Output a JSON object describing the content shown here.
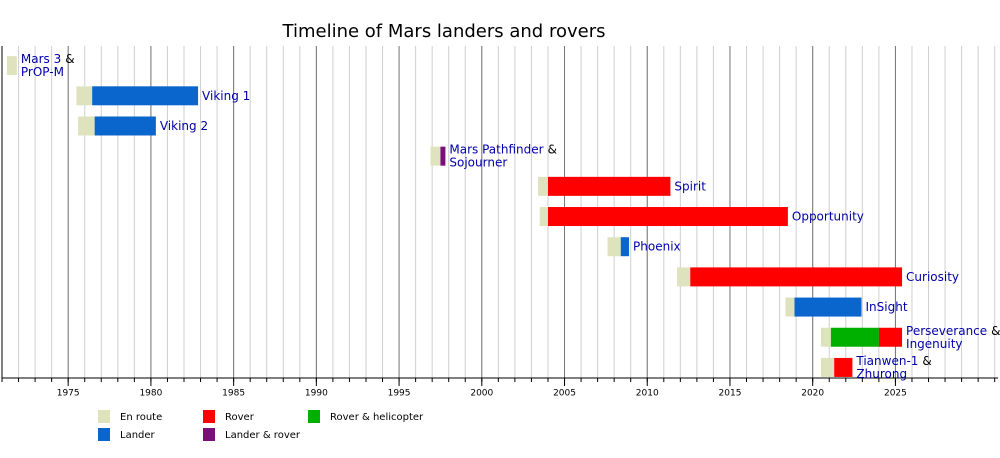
{
  "chart_data": {
    "type": "timeline",
    "title": "Timeline of Mars landers and rovers",
    "connector": "&",
    "xlim": [
      1971,
      2031.2
    ],
    "xticks": [
      1975,
      1980,
      1985,
      1990,
      1995,
      2000,
      2005,
      2010,
      2015,
      2020,
      2025
    ],
    "minor_tick_step": 1,
    "grid": true,
    "legend": [
      {
        "name": "En route",
        "color": "#dfe3bd"
      },
      {
        "name": "Lander",
        "color": "#0a66cc"
      },
      {
        "name": "Rover",
        "color": "#ff0000"
      },
      {
        "name": "Lander & rover",
        "color": "#7a0f7a"
      },
      {
        "name": "Rover & helicopter",
        "color": "#00b000"
      }
    ],
    "missions": [
      {
        "names": [
          "Mars 3",
          "PrOP-M"
        ],
        "segments": [
          {
            "kind": "En route",
            "start": 1971.3,
            "end": 1971.9
          }
        ]
      },
      {
        "names": [
          "Viking 1"
        ],
        "segments": [
          {
            "kind": "En route",
            "start": 1975.5,
            "end": 1976.45
          },
          {
            "kind": "Lander",
            "start": 1976.45,
            "end": 1982.85
          }
        ]
      },
      {
        "names": [
          "Viking 2"
        ],
        "segments": [
          {
            "kind": "En route",
            "start": 1975.6,
            "end": 1976.6
          },
          {
            "kind": "Lander",
            "start": 1976.6,
            "end": 1980.3
          }
        ]
      },
      {
        "names": [
          "Mars Pathfinder",
          "Sojourner"
        ],
        "segments": [
          {
            "kind": "En route",
            "start": 1996.9,
            "end": 1997.5
          },
          {
            "kind": "Lander & rover",
            "start": 1997.5,
            "end": 1997.8
          }
        ]
      },
      {
        "names": [
          "Spirit"
        ],
        "segments": [
          {
            "kind": "En route",
            "start": 2003.4,
            "end": 2004.0
          },
          {
            "kind": "Rover",
            "start": 2004.0,
            "end": 2011.4
          }
        ]
      },
      {
        "names": [
          "Opportunity"
        ],
        "segments": [
          {
            "kind": "En route",
            "start": 2003.5,
            "end": 2004.0
          },
          {
            "kind": "Rover",
            "start": 2004.0,
            "end": 2018.5
          }
        ]
      },
      {
        "names": [
          "Phoenix"
        ],
        "segments": [
          {
            "kind": "En route",
            "start": 2007.6,
            "end": 2008.4
          },
          {
            "kind": "Lander",
            "start": 2008.4,
            "end": 2008.9
          }
        ]
      },
      {
        "names": [
          "Curiosity"
        ],
        "segments": [
          {
            "kind": "En route",
            "start": 2011.8,
            "end": 2012.6
          },
          {
            "kind": "Rover",
            "start": 2012.6,
            "end": 2025.4
          }
        ]
      },
      {
        "names": [
          "InSight"
        ],
        "segments": [
          {
            "kind": "En route",
            "start": 2018.35,
            "end": 2018.9
          },
          {
            "kind": "Lander",
            "start": 2018.9,
            "end": 2022.95
          }
        ]
      },
      {
        "names": [
          "Perseverance",
          "Ingenuity"
        ],
        "segments": [
          {
            "kind": "En route",
            "start": 2020.5,
            "end": 2021.1
          },
          {
            "kind": "Rover & helicopter",
            "start": 2021.1,
            "end": 2024.0
          },
          {
            "kind": "Rover",
            "start": 2024.0,
            "end": 2025.4
          }
        ]
      },
      {
        "names": [
          "Tianwen-1",
          "Zhurong"
        ],
        "segments": [
          {
            "kind": "En route",
            "start": 2020.5,
            "end": 2021.3
          },
          {
            "kind": "Rover",
            "start": 2021.3,
            "end": 2022.4
          }
        ]
      }
    ]
  }
}
